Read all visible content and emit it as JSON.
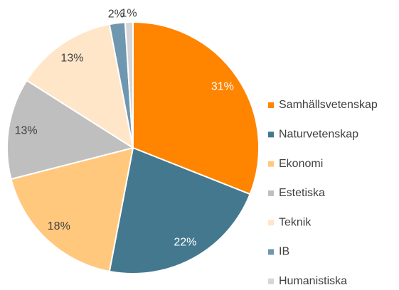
{
  "chart_data": {
    "type": "pie",
    "categories": [
      "Samhällsvetenskap",
      "Naturvetenskap",
      "Ekonomi",
      "Estetiska",
      "Teknik",
      "IB",
      "Humanistiska"
    ],
    "values": [
      31,
      22,
      18,
      13,
      13,
      2,
      1
    ],
    "value_labels": [
      "31%",
      "22%",
      "18%",
      "13%",
      "13%",
      "2%",
      "1%"
    ],
    "colors": [
      "#ff8400",
      "#44788f",
      "#ffc87d",
      "#bfbfbf",
      "#ffe6c9",
      "#6f97b0",
      "#d6d6d6"
    ],
    "legend": "right"
  }
}
